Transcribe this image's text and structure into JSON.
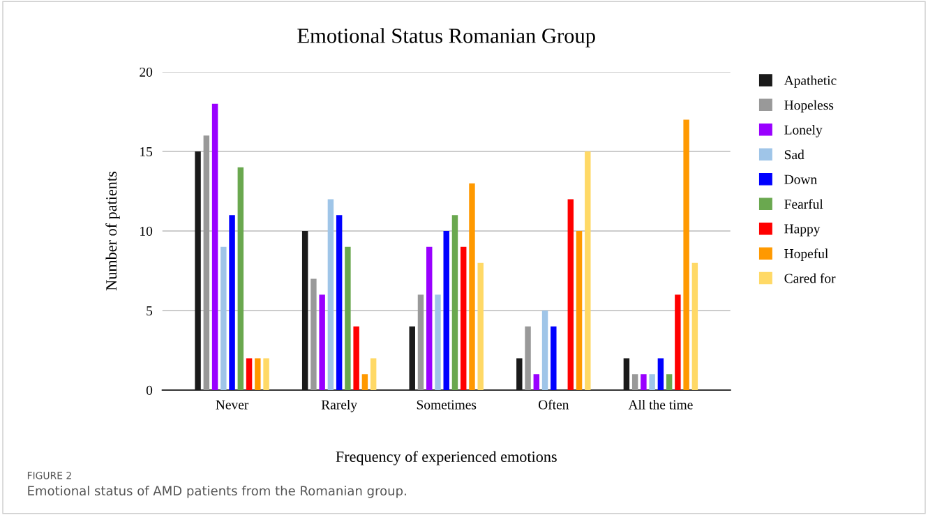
{
  "chart_data": {
    "type": "bar",
    "title": "Emotional Status Romanian Group",
    "xlabel": "Frequency of experienced emotions",
    "ylabel": "Number of patients",
    "categories": [
      "Never",
      "Rarely",
      "Sometimes",
      "Often",
      "All the time"
    ],
    "series": [
      {
        "name": "Apathetic",
        "color": "#1a1a1a",
        "values": [
          15,
          10,
          4,
          2,
          2
        ]
      },
      {
        "name": "Hopeless",
        "color": "#999999",
        "values": [
          16,
          7,
          6,
          4,
          1
        ]
      },
      {
        "name": "Lonely",
        "color": "#9900ff",
        "values": [
          18,
          6,
          9,
          1,
          1
        ]
      },
      {
        "name": "Sad",
        "color": "#9fc5e8",
        "values": [
          9,
          12,
          6,
          5,
          1
        ]
      },
      {
        "name": "Down",
        "color": "#0000ff",
        "values": [
          11,
          11,
          10,
          4,
          2
        ]
      },
      {
        "name": "Fearful",
        "color": "#6aa84f",
        "values": [
          14,
          9,
          11,
          0,
          1
        ]
      },
      {
        "name": "Happy",
        "color": "#ff0000",
        "values": [
          2,
          4,
          9,
          12,
          6
        ]
      },
      {
        "name": "Hopeful",
        "color": "#ff9900",
        "values": [
          2,
          1,
          13,
          10,
          17
        ]
      },
      {
        "name": "Cared for",
        "color": "#ffd966",
        "values": [
          2,
          2,
          8,
          15,
          8
        ]
      }
    ],
    "ylim": [
      0,
      20
    ],
    "yticks": [
      0,
      5,
      10,
      15,
      20
    ],
    "grid": "y",
    "legend": "right",
    "annotations": [
      "FIGURE 2",
      "Emotional status of AMD patients from the Romanian group."
    ]
  }
}
